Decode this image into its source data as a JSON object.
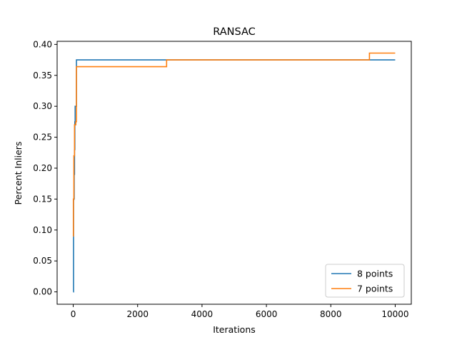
{
  "chart_data": {
    "type": "line",
    "title": "RANSAC",
    "xlabel": "Iterations",
    "ylabel": "Percent Inliers",
    "xlim": [
      -500,
      10500
    ],
    "ylim": [
      -0.02,
      0.405
    ],
    "xticks": [
      0,
      2000,
      4000,
      6000,
      8000,
      10000
    ],
    "xtick_labels": [
      "0",
      "2000",
      "4000",
      "6000",
      "8000",
      "10000"
    ],
    "yticks": [
      0.0,
      0.05,
      0.1,
      0.15,
      0.2,
      0.25,
      0.3,
      0.35,
      0.4
    ],
    "ytick_labels": [
      "0.00",
      "0.05",
      "0.10",
      "0.15",
      "0.20",
      "0.25",
      "0.30",
      "0.35",
      "0.40"
    ],
    "grid": false,
    "legend_position": "bottom-right",
    "series": [
      {
        "name": "8 points",
        "color": "#1f77b4",
        "step": true,
        "x": [
          0,
          10,
          30,
          40,
          50,
          60,
          100,
          10000
        ],
        "y": [
          0.0,
          0.15,
          0.19,
          0.23,
          0.275,
          0.3,
          0.375,
          0.375
        ]
      },
      {
        "name": "7 points",
        "color": "#ff7f0e",
        "step": true,
        "x": [
          0,
          5,
          20,
          40,
          60,
          80,
          100,
          2900,
          9200,
          10000
        ],
        "y": [
          0.09,
          0.15,
          0.22,
          0.27,
          0.27,
          0.275,
          0.364,
          0.375,
          0.386,
          0.386
        ]
      }
    ]
  }
}
